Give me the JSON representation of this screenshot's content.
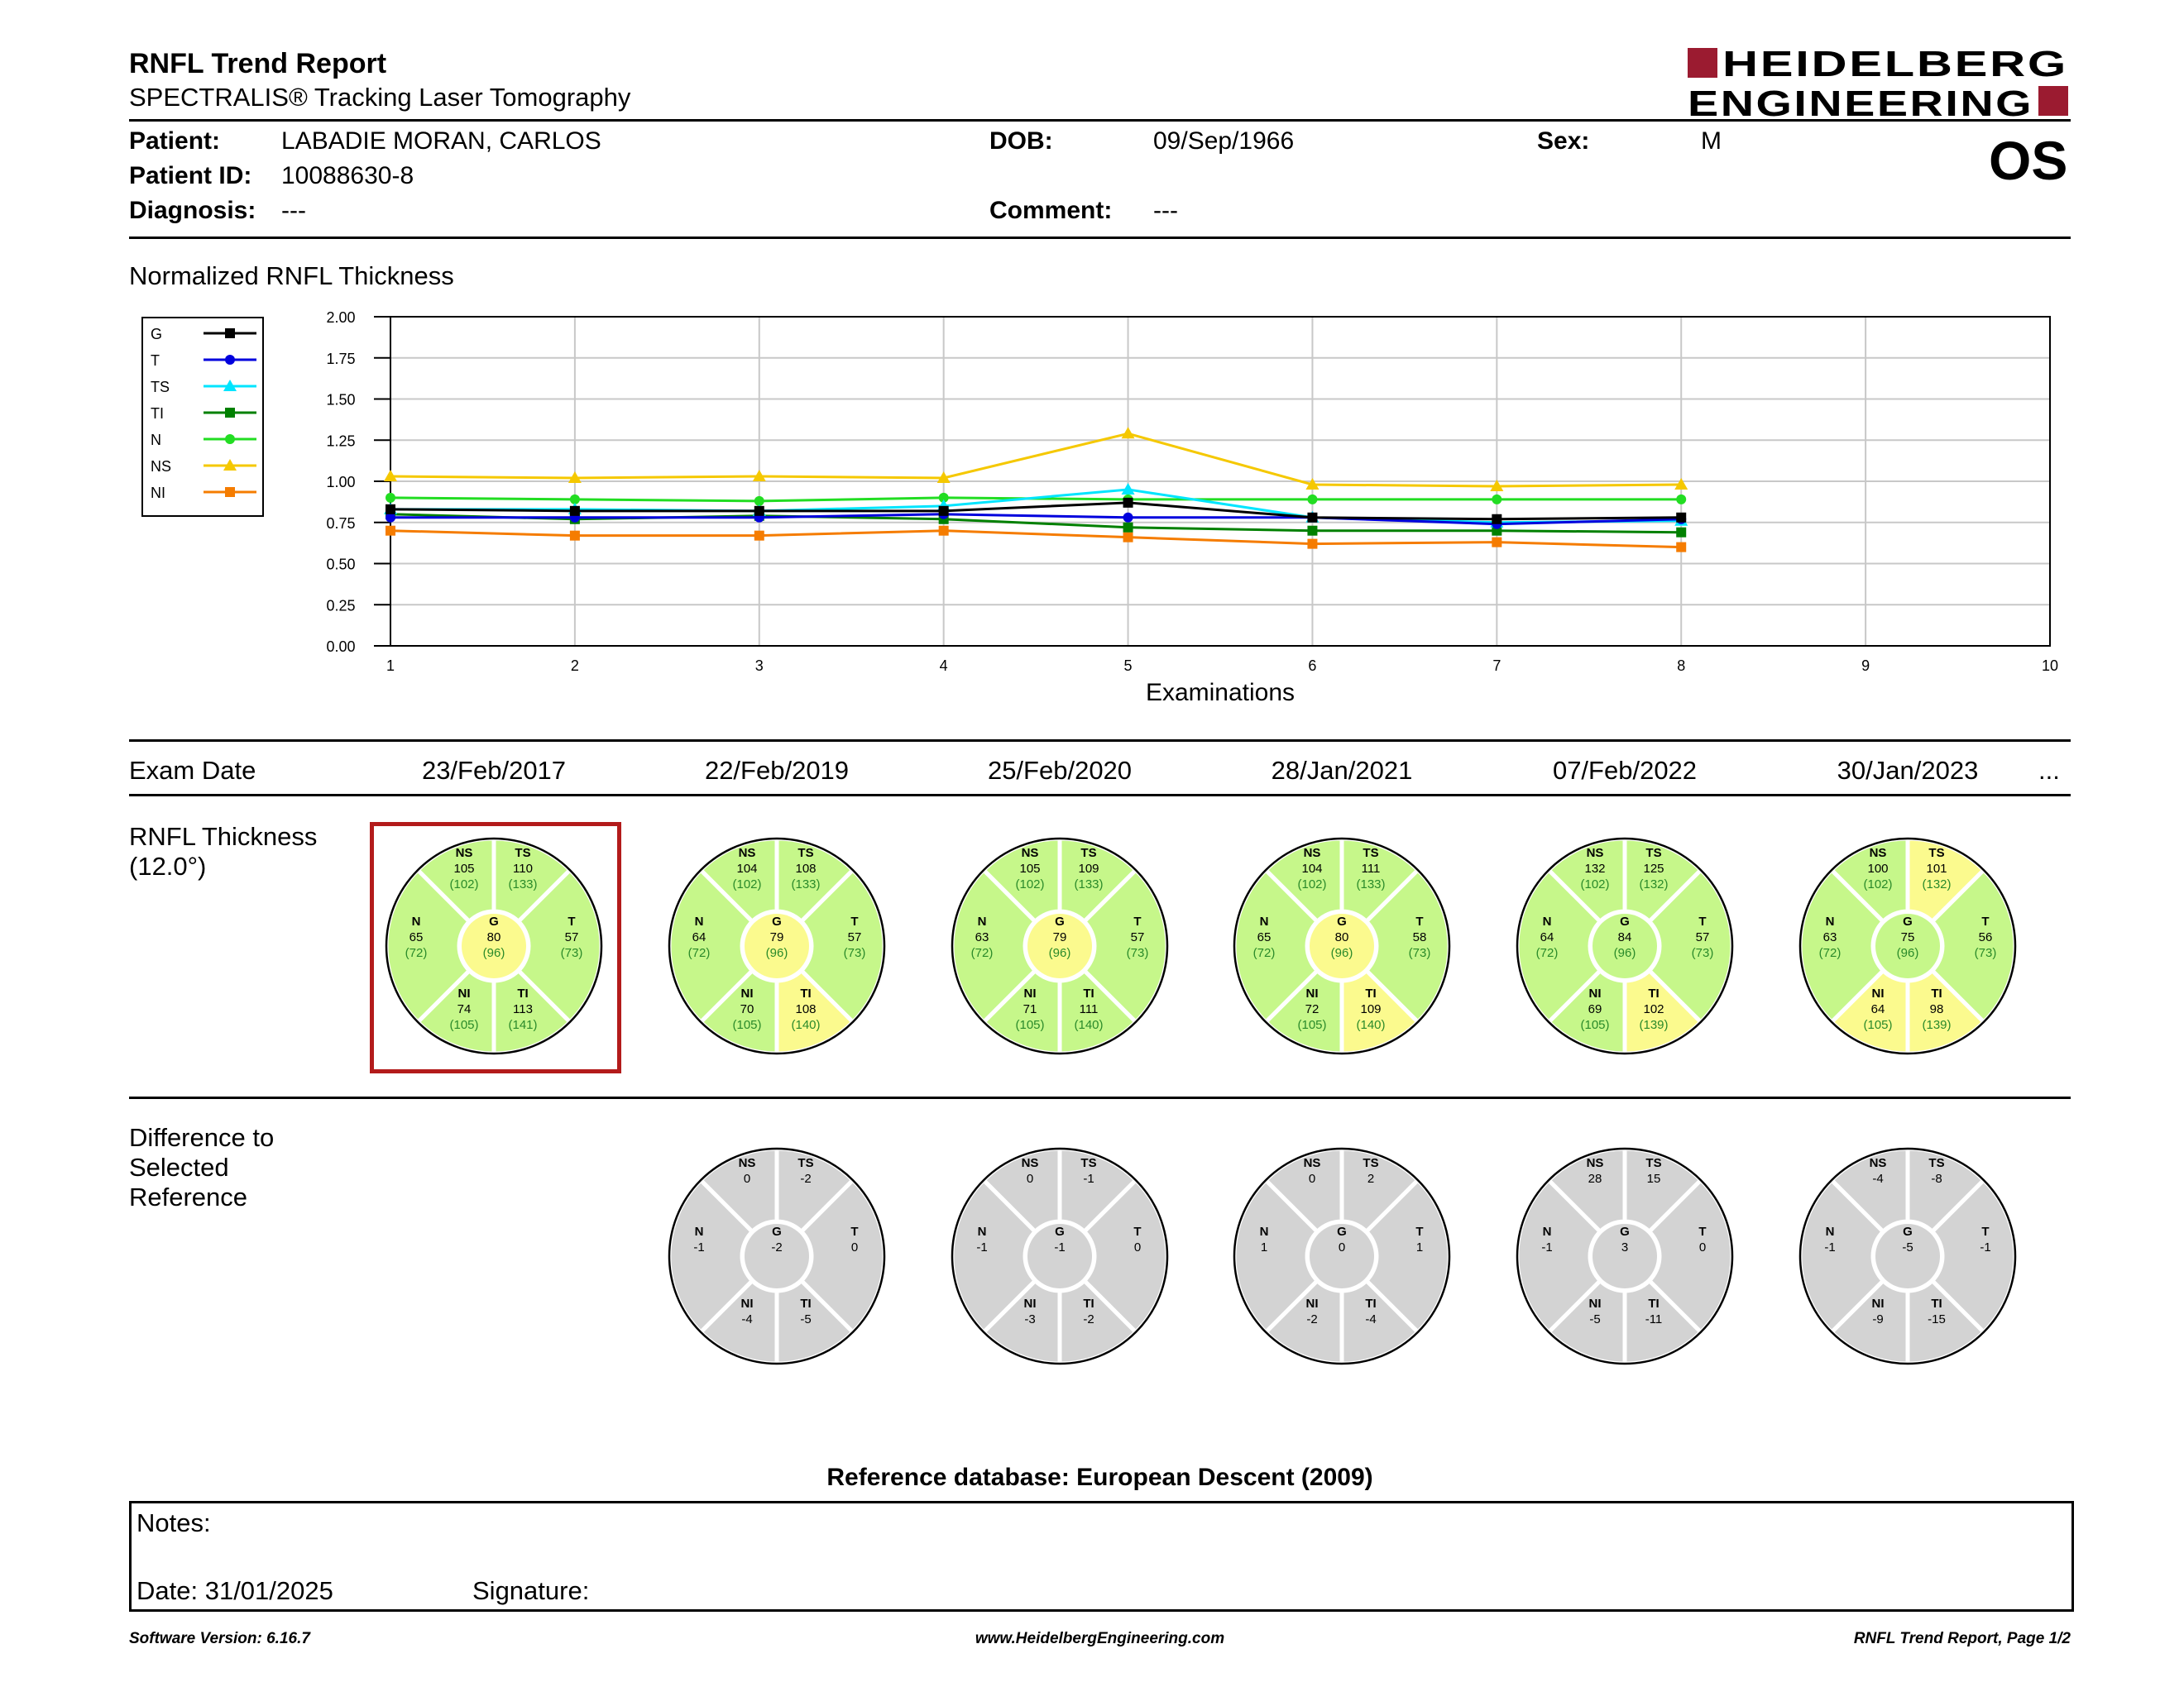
{
  "header": {
    "title": "RNFL Trend Report",
    "subtitle": "SPECTRALIS® Tracking Laser Tomography",
    "brand_line1": "HEIDELBERG",
    "brand_line2": "ENGINEERING",
    "brand_color": "#9b1b30"
  },
  "patient": {
    "patient_label": "Patient:",
    "patient_value": "LABADIE MORAN, CARLOS",
    "dob_label": "DOB:",
    "dob_value": "09/Sep/1966",
    "sex_label": "Sex:",
    "sex_value": "M",
    "id_label": "Patient ID:",
    "id_value": "10088630-8",
    "diagnosis_label": "Diagnosis:",
    "diagnosis_value": "---",
    "comment_label": "Comment:",
    "comment_value": "---",
    "eye": "OS"
  },
  "chart_title": "Normalized RNFL Thickness",
  "chart_data": {
    "type": "line",
    "xlabel": "Examinations",
    "ylabel": "",
    "xlim": [
      1,
      10
    ],
    "ylim": [
      0,
      2
    ],
    "x_ticks": [
      1,
      2,
      3,
      4,
      5,
      6,
      7,
      8,
      9,
      10
    ],
    "y_ticks": [
      "0.00",
      "0.25",
      "0.50",
      "0.75",
      "1.00",
      "1.25",
      "1.50",
      "1.75",
      "2.00"
    ],
    "grid": true,
    "legend_position": "left",
    "x": [
      1,
      2,
      3,
      4,
      5,
      6,
      7,
      8
    ],
    "series": [
      {
        "name": "G",
        "color": "#000000",
        "marker": "square",
        "values": [
          0.83,
          0.82,
          0.82,
          0.82,
          0.87,
          0.78,
          0.77,
          0.78
        ]
      },
      {
        "name": "T",
        "color": "#0000dd",
        "marker": "circle",
        "values": [
          0.78,
          0.78,
          0.78,
          0.8,
          0.78,
          0.78,
          0.74,
          0.77
        ]
      },
      {
        "name": "TS",
        "color": "#00e5ff",
        "marker": "triangle",
        "values": [
          0.83,
          0.83,
          0.82,
          0.85,
          0.95,
          0.78,
          0.75,
          0.76
        ]
      },
      {
        "name": "TI",
        "color": "#008000",
        "marker": "square",
        "values": [
          0.8,
          0.77,
          0.79,
          0.77,
          0.72,
          0.7,
          0.7,
          0.69
        ]
      },
      {
        "name": "N",
        "color": "#22dd22",
        "marker": "circle",
        "values": [
          0.9,
          0.89,
          0.88,
          0.9,
          0.89,
          0.89,
          0.89,
          0.89
        ]
      },
      {
        "name": "NS",
        "color": "#f5c800",
        "marker": "triangle",
        "values": [
          1.03,
          1.02,
          1.03,
          1.02,
          1.29,
          0.98,
          0.97,
          0.98
        ]
      },
      {
        "name": "NI",
        "color": "#f57c00",
        "marker": "square",
        "values": [
          0.7,
          0.67,
          0.67,
          0.7,
          0.66,
          0.62,
          0.63,
          0.6
        ]
      }
    ]
  },
  "exam_header": {
    "label": "Exam Date",
    "more": "..."
  },
  "exam_dates": [
    "23/Feb/2017",
    "22/Feb/2019",
    "25/Feb/2020",
    "28/Jan/2021",
    "07/Feb/2022",
    "30/Jan/2023"
  ],
  "thickness_label": [
    "RNFL Thickness",
    "(12.0°)"
  ],
  "difference_label": [
    "Difference to",
    "Selected",
    "Reference"
  ],
  "sector_names": {
    "NS": "NS",
    "TS": "TS",
    "N": "N",
    "G": "G",
    "T": "T",
    "NI": "NI",
    "TI": "TI"
  },
  "normal_color": "#c6f78a",
  "borderline_color": "#fbfa8e",
  "gray_color": "#d3d3d3",
  "selected_color": "#b31b1b",
  "thickness": [
    {
      "selected": true,
      "NS": {
        "v": "105",
        "r": "(102)",
        "c": "g"
      },
      "TS": {
        "v": "110",
        "r": "(133)",
        "c": "g"
      },
      "N": {
        "v": "65",
        "r": "(72)",
        "c": "g"
      },
      "G": {
        "v": "80",
        "r": "(96)",
        "c": "y"
      },
      "T": {
        "v": "57",
        "r": "(73)",
        "c": "g"
      },
      "NI": {
        "v": "74",
        "r": "(105)",
        "c": "g"
      },
      "TI": {
        "v": "113",
        "r": "(141)",
        "c": "g"
      }
    },
    {
      "selected": false,
      "NS": {
        "v": "104",
        "r": "(102)",
        "c": "g"
      },
      "TS": {
        "v": "108",
        "r": "(133)",
        "c": "g"
      },
      "N": {
        "v": "64",
        "r": "(72)",
        "c": "g"
      },
      "G": {
        "v": "79",
        "r": "(96)",
        "c": "y"
      },
      "T": {
        "v": "57",
        "r": "(73)",
        "c": "g"
      },
      "NI": {
        "v": "70",
        "r": "(105)",
        "c": "g"
      },
      "TI": {
        "v": "108",
        "r": "(140)",
        "c": "y"
      }
    },
    {
      "selected": false,
      "NS": {
        "v": "105",
        "r": "(102)",
        "c": "g"
      },
      "TS": {
        "v": "109",
        "r": "(133)",
        "c": "g"
      },
      "N": {
        "v": "63",
        "r": "(72)",
        "c": "g"
      },
      "G": {
        "v": "79",
        "r": "(96)",
        "c": "y"
      },
      "T": {
        "v": "57",
        "r": "(73)",
        "c": "g"
      },
      "NI": {
        "v": "71",
        "r": "(105)",
        "c": "g"
      },
      "TI": {
        "v": "111",
        "r": "(140)",
        "c": "g"
      }
    },
    {
      "selected": false,
      "NS": {
        "v": "104",
        "r": "(102)",
        "c": "g"
      },
      "TS": {
        "v": "111",
        "r": "(133)",
        "c": "g"
      },
      "N": {
        "v": "65",
        "r": "(72)",
        "c": "g"
      },
      "G": {
        "v": "80",
        "r": "(96)",
        "c": "y"
      },
      "T": {
        "v": "58",
        "r": "(73)",
        "c": "g"
      },
      "NI": {
        "v": "72",
        "r": "(105)",
        "c": "g"
      },
      "TI": {
        "v": "109",
        "r": "(140)",
        "c": "y"
      }
    },
    {
      "selected": false,
      "NS": {
        "v": "132",
        "r": "(102)",
        "c": "g"
      },
      "TS": {
        "v": "125",
        "r": "(132)",
        "c": "g"
      },
      "N": {
        "v": "64",
        "r": "(72)",
        "c": "g"
      },
      "G": {
        "v": "84",
        "r": "(96)",
        "c": "g"
      },
      "T": {
        "v": "57",
        "r": "(73)",
        "c": "g"
      },
      "NI": {
        "v": "69",
        "r": "(105)",
        "c": "g"
      },
      "TI": {
        "v": "102",
        "r": "(139)",
        "c": "y"
      }
    },
    {
      "selected": false,
      "NS": {
        "v": "100",
        "r": "(102)",
        "c": "g"
      },
      "TS": {
        "v": "101",
        "r": "(132)",
        "c": "y"
      },
      "N": {
        "v": "63",
        "r": "(72)",
        "c": "g"
      },
      "G": {
        "v": "75",
        "r": "(96)",
        "c": "g"
      },
      "T": {
        "v": "56",
        "r": "(73)",
        "c": "g"
      },
      "NI": {
        "v": "64",
        "r": "(105)",
        "c": "y"
      },
      "TI": {
        "v": "98",
        "r": "(139)",
        "c": "y"
      }
    }
  ],
  "difference": [
    {
      "NS": "0",
      "TS": "-2",
      "N": "-1",
      "G": "-2",
      "T": "0",
      "NI": "-4",
      "TI": "-5"
    },
    {
      "NS": "0",
      "TS": "-1",
      "N": "-1",
      "G": "-1",
      "T": "0",
      "NI": "-3",
      "TI": "-2"
    },
    {
      "NS": "0",
      "TS": "2",
      "N": "1",
      "G": "0",
      "T": "1",
      "NI": "-2",
      "TI": "-4"
    },
    {
      "NS": "28",
      "TS": "15",
      "N": "-1",
      "G": "3",
      "T": "0",
      "NI": "-5",
      "TI": "-11"
    },
    {
      "NS": "-4",
      "TS": "-8",
      "N": "-1",
      "G": "-5",
      "T": "-1",
      "NI": "-9",
      "TI": "-15"
    }
  ],
  "reference_db": "Reference database: European Descent (2009)",
  "notes": {
    "label": "Notes:",
    "date": "Date: 31/01/2025",
    "signature": "Signature:"
  },
  "footer": {
    "left": "Software Version: 6.16.7",
    "center": "www.HeidelbergEngineering.com",
    "right": "RNFL Trend Report, Page 1/2"
  }
}
